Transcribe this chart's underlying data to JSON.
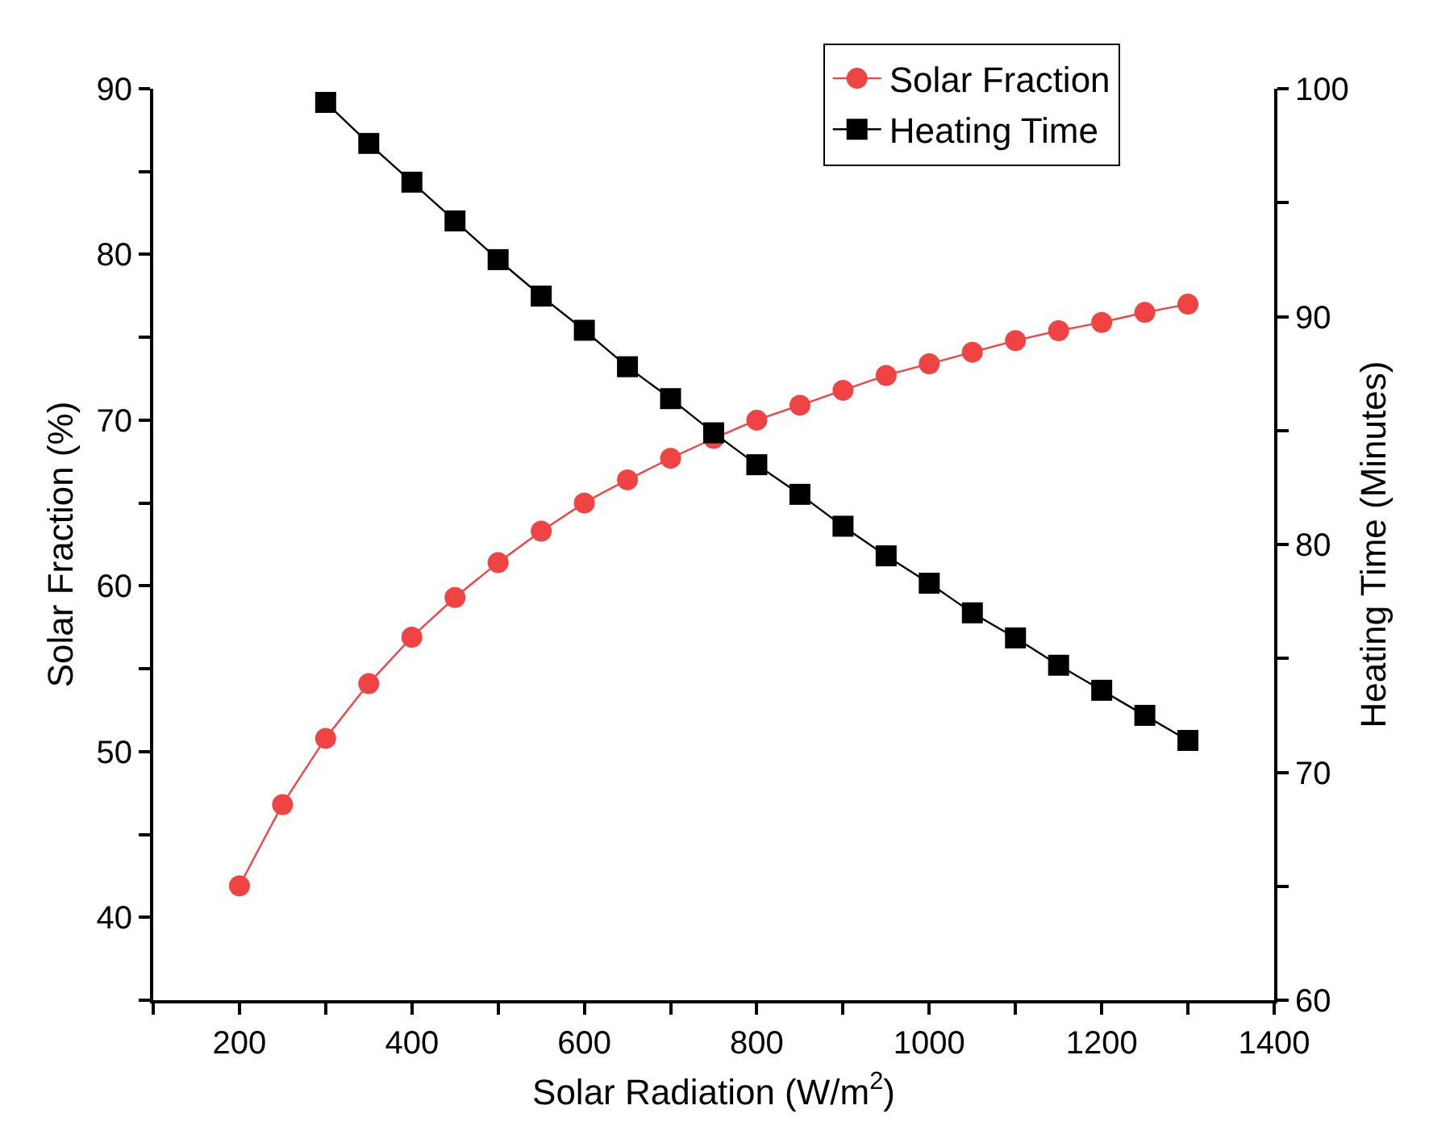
{
  "chart_data": {
    "type": "line",
    "xlabel": "Solar Radiation (W/m$^{2}$)",
    "ylabel": "Solar Fraction (%)",
    "y2label": "Heating Time (Minutes)",
    "x": [
      200,
      250,
      300,
      350,
      400,
      450,
      500,
      550,
      600,
      650,
      700,
      750,
      800,
      850,
      900,
      950,
      1000,
      1050,
      1100,
      1150,
      1200,
      1250,
      1300
    ],
    "series": [
      {
        "name": "Solar Fraction",
        "color": "#f04343",
        "marker": "circle",
        "values": [
          41.9,
          46.8,
          50.8,
          54.1,
          56.9,
          59.3,
          61.4,
          63.3,
          65.0,
          66.4,
          67.7,
          68.9,
          70.0,
          70.9,
          71.8,
          72.7,
          73.4,
          74.1,
          74.8,
          75.4,
          75.9,
          76.5,
          77.0
        ]
      },
      {
        "name": "Heating Time",
        "color": "#000000",
        "marker": "square",
        "axis": "y2",
        "x": [
          300,
          350,
          400,
          450,
          500,
          550,
          600,
          650,
          700,
          750,
          800,
          850,
          900,
          950,
          1000,
          1050,
          1100,
          1150,
          1200,
          1250,
          1300
        ],
        "values": [
          99.4,
          97.6,
          95.9,
          94.2,
          92.5,
          90.9,
          89.4,
          87.8,
          86.4,
          84.9,
          83.5,
          82.2,
          80.8,
          79.5,
          78.3,
          77.0,
          75.9,
          74.7,
          73.6,
          72.5,
          71.4
        ]
      }
    ],
    "xlim": [
      100,
      1400
    ],
    "xticks": [
      {
        "value": 100,
        "label": null
      },
      200,
      {
        "value": 300,
        "label": null
      },
      400,
      {
        "value": 500,
        "label": null
      },
      600,
      {
        "value": 700,
        "label": null
      },
      800,
      {
        "value": 900,
        "label": null
      },
      1000,
      {
        "value": 1100,
        "label": null
      },
      1200,
      {
        "value": 1300,
        "label": null
      },
      1400
    ],
    "ylim": [
      35,
      90
    ],
    "yticks": [
      {
        "value": 35,
        "label": null
      },
      40,
      {
        "value": 45,
        "label": null
      },
      50,
      {
        "value": 55,
        "label": null
      },
      60,
      {
        "value": 65,
        "label": null
      },
      70,
      {
        "value": 75,
        "label": null
      },
      80,
      {
        "value": 85,
        "label": null
      },
      90
    ],
    "y2lim": [
      60,
      100
    ],
    "y2ticks": [
      60,
      {
        "value": 65,
        "label": null
      },
      70,
      {
        "value": 75,
        "label": null
      },
      80,
      {
        "value": 85,
        "label": null
      },
      90,
      {
        "value": 95,
        "label": null
      },
      100
    ],
    "legend": "top",
    "line_style": "solid"
  }
}
